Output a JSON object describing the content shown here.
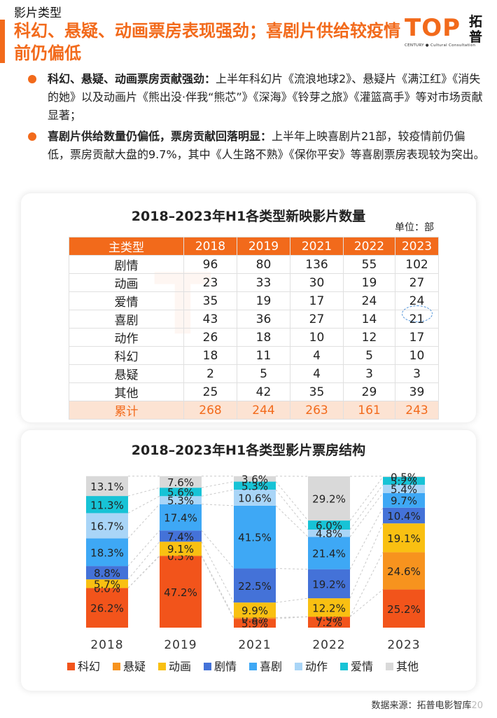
{
  "header": {
    "section": "影片类型",
    "headline": "科幻、悬疑、动画票房表现强劲；喜剧片供给较疫情前仍偏低"
  },
  "logo": {
    "word": "TOP",
    "cn": "拓普",
    "sub": "CENTURY ● Cultural Consultation"
  },
  "bullets": [
    {
      "bold": "科幻、悬疑、动画票房贡献强劲：",
      "text": "上半年科幻片《流浪地球2》、悬疑片《满江红》《消失的她》以及动画片《熊出没·伴我“熊芯”》《深海》《铃芽之旅》《灌篮高手》等对市场贡献显著；"
    },
    {
      "bold": "喜剧片供给数量仍偏低，票房贡献回落明显：",
      "text": "上半年上映喜剧片21部，较疫情前仍偏低，票房贡献大盘的9.7%，其中《人生路不熟》《保你平安》等喜剧票房表现较为突出。"
    }
  ],
  "table": {
    "title": "2018–2023年H1各类型新映影片数量",
    "unit": "单位：部",
    "headers": [
      "主类型",
      "2018",
      "2019",
      "2021",
      "2022",
      "2023"
    ],
    "rows": [
      [
        "剧情",
        "96",
        "80",
        "136",
        "55",
        "102"
      ],
      [
        "动画",
        "23",
        "33",
        "30",
        "19",
        "27"
      ],
      [
        "爱情",
        "35",
        "19",
        "17",
        "24",
        "24"
      ],
      [
        "喜剧",
        "43",
        "36",
        "27",
        "14",
        "21"
      ],
      [
        "动作",
        "26",
        "18",
        "10",
        "12",
        "17"
      ],
      [
        "科幻",
        "18",
        "11",
        "4",
        "5",
        "10"
      ],
      [
        "悬疑",
        "2",
        "5",
        "4",
        "3",
        "3"
      ],
      [
        "其他",
        "25",
        "42",
        "35",
        "29",
        "39"
      ]
    ],
    "total": [
      "累计",
      "268",
      "244",
      "263",
      "161",
      "243"
    ]
  },
  "chart_data": {
    "type": "bar",
    "stacked": true,
    "normalized": true,
    "title": "2018–2023年H1各类型影片票房结构",
    "categories": [
      "2018",
      "2019",
      "2021",
      "2022",
      "2023"
    ],
    "ylim": [
      0,
      100
    ],
    "legend_position": "bottom",
    "series": [
      {
        "name": "科幻",
        "color": "#f2541b",
        "values": [
          26.2,
          47.2,
          5.9,
          7.2,
          25.2
        ]
      },
      {
        "name": "悬疑",
        "color": "#f7931e",
        "values": [
          0.0,
          0.5,
          0.8,
          0.0,
          24.6
        ]
      },
      {
        "name": "动画",
        "color": "#f9c012",
        "values": [
          5.7,
          9.1,
          9.9,
          12.2,
          19.1
        ]
      },
      {
        "name": "剧情",
        "color": "#4472d8",
        "values": [
          8.8,
          7.4,
          22.5,
          19.2,
          10.4
        ]
      },
      {
        "name": "喜剧",
        "color": "#3ea8f5",
        "values": [
          18.3,
          17.4,
          41.5,
          21.4,
          9.7
        ]
      },
      {
        "name": "动作",
        "color": "#a9d5f7",
        "values": [
          16.7,
          5.3,
          10.6,
          4.8,
          5.4
        ]
      },
      {
        "name": "爱情",
        "color": "#17c3d6",
        "values": [
          11.3,
          5.6,
          5.3,
          6.0,
          5.2
        ]
      },
      {
        "name": "其他",
        "color": "#d9d9d9",
        "values": [
          13.1,
          7.6,
          3.6,
          29.2,
          0.5
        ]
      }
    ]
  },
  "footer": {
    "source": "数据来源：拓普电影智库",
    "page": "20"
  }
}
